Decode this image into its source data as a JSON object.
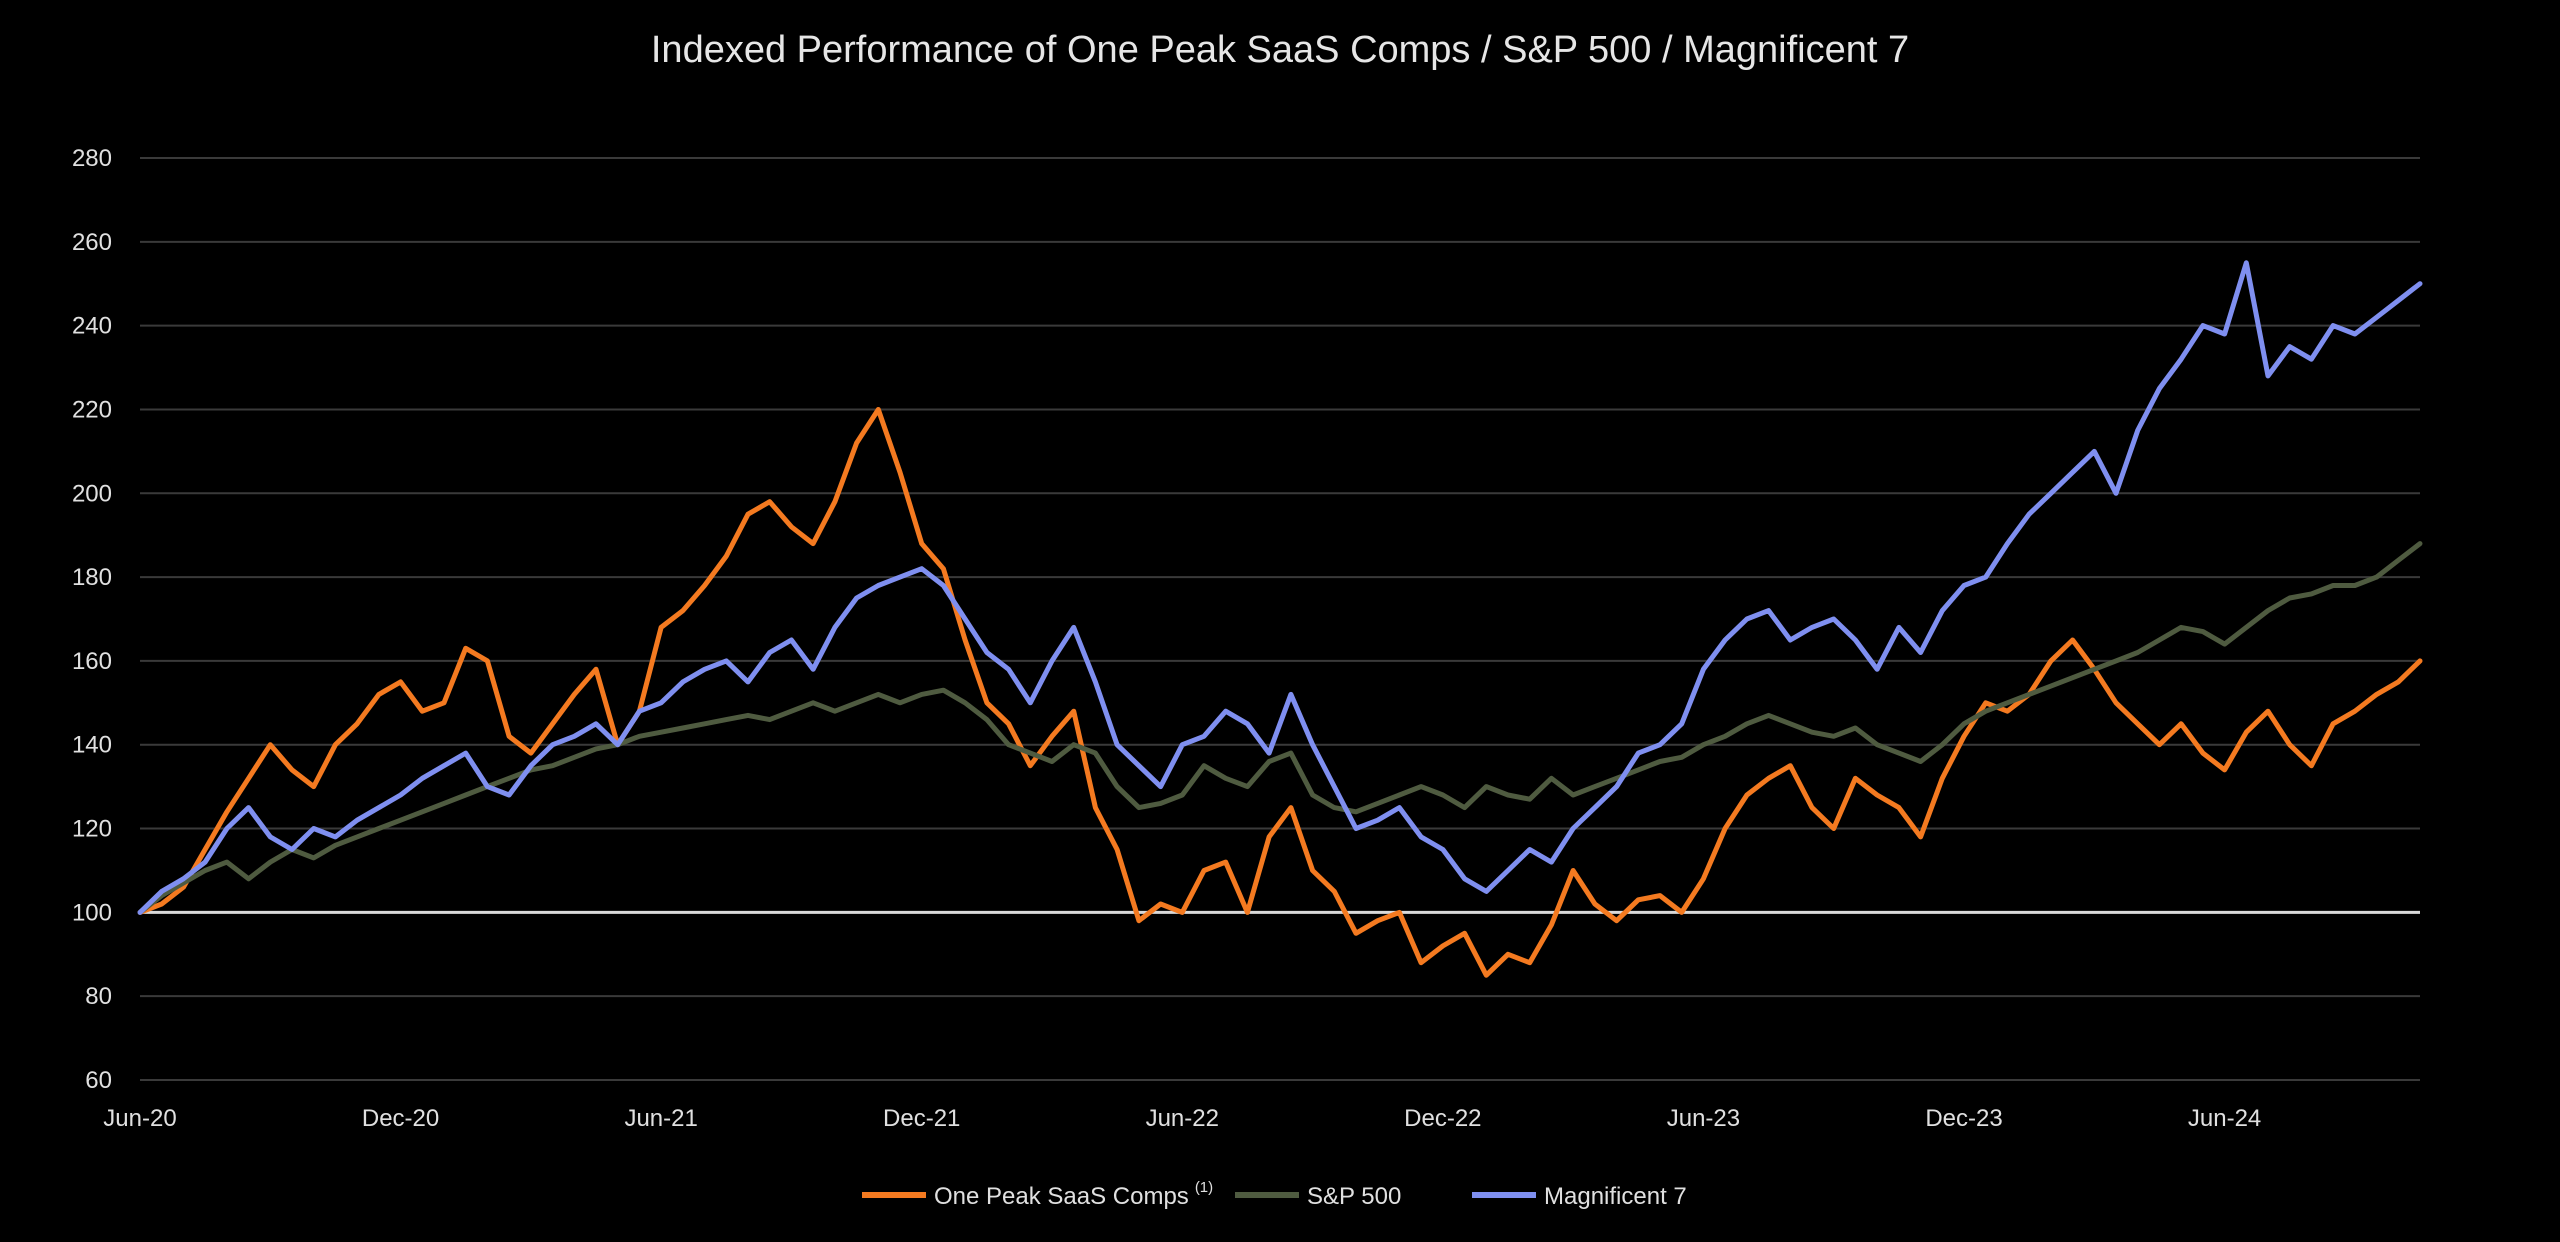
{
  "chart_data": {
    "type": "line",
    "title": "Indexed Performance of One Peak SaaS Comps / S&P 500 / Magnificent 7",
    "xlabel": "",
    "ylabel": "",
    "ylim": [
      60,
      280
    ],
    "yticks": [
      60,
      80,
      100,
      120,
      140,
      160,
      180,
      200,
      220,
      240,
      260,
      280
    ],
    "xlim": [
      0,
      52.5
    ],
    "xticks": [
      {
        "label": "Jun-20",
        "x": 0
      },
      {
        "label": "Dec-20",
        "x": 6
      },
      {
        "label": "Jun-21",
        "x": 12
      },
      {
        "label": "Dec-21",
        "x": 18
      },
      {
        "label": "Jun-22",
        "x": 24
      },
      {
        "label": "Dec-22",
        "x": 30
      },
      {
        "label": "Jun-23",
        "x": 36
      },
      {
        "label": "Dec-23",
        "x": 42
      },
      {
        "label": "Jun-24",
        "x": 48
      }
    ],
    "baseline": 100,
    "grid": true,
    "legend_position": "bottom-center",
    "x_unit": "months since Jun-20",
    "series": [
      {
        "name": "One Peak SaaS Comps",
        "superscript": "(1)",
        "color": "#f47a20",
        "x": [
          0,
          0.5,
          1,
          1.5,
          2,
          2.5,
          3,
          3.5,
          4,
          4.5,
          5,
          5.5,
          6,
          6.5,
          7,
          7.5,
          8,
          8.5,
          9,
          9.5,
          10,
          10.5,
          11,
          11.5,
          12,
          12.5,
          13,
          13.5,
          14,
          14.5,
          15,
          15.5,
          16,
          16.5,
          17,
          17.5,
          18,
          18.5,
          19,
          19.5,
          20,
          20.5,
          21,
          21.5,
          22,
          22.5,
          23,
          23.5,
          24,
          24.5,
          25,
          25.5,
          26,
          26.5,
          27,
          27.5,
          28,
          28.5,
          29,
          29.5,
          30,
          30.5,
          31,
          31.5,
          32,
          32.5,
          33,
          33.5,
          34,
          34.5,
          35,
          35.5,
          36,
          36.5,
          37,
          37.5,
          38,
          38.5,
          39,
          39.5,
          40,
          40.5,
          41,
          41.5,
          42,
          42.5,
          43,
          43.5,
          44,
          44.5,
          45,
          45.5,
          46,
          46.5,
          47,
          47.5,
          48,
          48.5,
          49,
          49.5,
          50,
          50.5,
          51,
          51.5,
          52,
          52.5
        ],
        "values": [
          100,
          102,
          106,
          115,
          124,
          132,
          140,
          134,
          130,
          140,
          145,
          152,
          155,
          148,
          150,
          163,
          160,
          142,
          138,
          145,
          152,
          158,
          140,
          148,
          168,
          172,
          178,
          185,
          195,
          198,
          192,
          188,
          198,
          212,
          220,
          205,
          188,
          182,
          165,
          150,
          145,
          135,
          142,
          148,
          125,
          115,
          98,
          102,
          100,
          110,
          112,
          100,
          118,
          125,
          110,
          105,
          95,
          98,
          100,
          88,
          92,
          95,
          85,
          90,
          88,
          97,
          110,
          102,
          98,
          103,
          104,
          100,
          108,
          120,
          128,
          132,
          135,
          125,
          120,
          132,
          128,
          125,
          118,
          132,
          142,
          150,
          148,
          152,
          160,
          165,
          158,
          150,
          145,
          140,
          145,
          138,
          134,
          143,
          148,
          140,
          135,
          145,
          148,
          152,
          155,
          160
        ]
      },
      {
        "name": "S&P 500",
        "superscript": "",
        "color": "#4f5b40",
        "x": [
          0,
          0.5,
          1,
          1.5,
          2,
          2.5,
          3,
          3.5,
          4,
          4.5,
          5,
          5.5,
          6,
          6.5,
          7,
          7.5,
          8,
          8.5,
          9,
          9.5,
          10,
          10.5,
          11,
          11.5,
          12,
          12.5,
          13,
          13.5,
          14,
          14.5,
          15,
          15.5,
          16,
          16.5,
          17,
          17.5,
          18,
          18.5,
          19,
          19.5,
          20,
          20.5,
          21,
          21.5,
          22,
          22.5,
          23,
          23.5,
          24,
          24.5,
          25,
          25.5,
          26,
          26.5,
          27,
          27.5,
          28,
          28.5,
          29,
          29.5,
          30,
          30.5,
          31,
          31.5,
          32,
          32.5,
          33,
          33.5,
          34,
          34.5,
          35,
          35.5,
          36,
          36.5,
          37,
          37.5,
          38,
          38.5,
          39,
          39.5,
          40,
          40.5,
          41,
          41.5,
          42,
          42.5,
          43,
          43.5,
          44,
          44.5,
          45,
          45.5,
          46,
          46.5,
          47,
          47.5,
          48,
          48.5,
          49,
          49.5,
          50,
          50.5,
          51,
          51.5,
          52,
          52.5
        ],
        "values": [
          100,
          104,
          107,
          110,
          112,
          108,
          112,
          115,
          113,
          116,
          118,
          120,
          122,
          124,
          126,
          128,
          130,
          132,
          134,
          135,
          137,
          139,
          140,
          142,
          143,
          144,
          145,
          146,
          147,
          146,
          148,
          150,
          148,
          150,
          152,
          150,
          152,
          153,
          150,
          146,
          140,
          138,
          136,
          140,
          138,
          130,
          125,
          126,
          128,
          135,
          132,
          130,
          136,
          138,
          128,
          125,
          124,
          126,
          128,
          130,
          128,
          125,
          130,
          128,
          127,
          132,
          128,
          130,
          132,
          134,
          136,
          137,
          140,
          142,
          145,
          147,
          145,
          143,
          142,
          144,
          140,
          138,
          136,
          140,
          145,
          148,
          150,
          152,
          154,
          156,
          158,
          160,
          162,
          165,
          168,
          167,
          164,
          168,
          172,
          175,
          176,
          178,
          178,
          180,
          184,
          188
        ]
      },
      {
        "name": "Magnificent 7",
        "superscript": "",
        "color": "#7f8ff0",
        "x": [
          0,
          0.5,
          1,
          1.5,
          2,
          2.5,
          3,
          3.5,
          4,
          4.5,
          5,
          5.5,
          6,
          6.5,
          7,
          7.5,
          8,
          8.5,
          9,
          9.5,
          10,
          10.5,
          11,
          11.5,
          12,
          12.5,
          13,
          13.5,
          14,
          14.5,
          15,
          15.5,
          16,
          16.5,
          17,
          17.5,
          18,
          18.5,
          19,
          19.5,
          20,
          20.5,
          21,
          21.5,
          22,
          22.5,
          23,
          23.5,
          24,
          24.5,
          25,
          25.5,
          26,
          26.5,
          27,
          27.5,
          28,
          28.5,
          29,
          29.5,
          30,
          30.5,
          31,
          31.5,
          32,
          32.5,
          33,
          33.5,
          34,
          34.5,
          35,
          35.5,
          36,
          36.5,
          37,
          37.5,
          38,
          38.5,
          39,
          39.5,
          40,
          40.5,
          41,
          41.5,
          42,
          42.5,
          43,
          43.5,
          44,
          44.5,
          45,
          45.5,
          46,
          46.5,
          47,
          47.5,
          48,
          48.5,
          49,
          49.5,
          50,
          50.5,
          51,
          51.5,
          52,
          52.5
        ],
        "values": [
          100,
          105,
          108,
          112,
          120,
          125,
          118,
          115,
          120,
          118,
          122,
          125,
          128,
          132,
          135,
          138,
          130,
          128,
          135,
          140,
          142,
          145,
          140,
          148,
          150,
          155,
          158,
          160,
          155,
          162,
          165,
          158,
          168,
          175,
          178,
          180,
          182,
          178,
          170,
          162,
          158,
          150,
          160,
          168,
          155,
          140,
          135,
          130,
          140,
          142,
          148,
          145,
          138,
          152,
          140,
          130,
          120,
          122,
          125,
          118,
          115,
          108,
          105,
          110,
          115,
          112,
          120,
          125,
          130,
          138,
          140,
          145,
          158,
          165,
          170,
          172,
          165,
          168,
          170,
          165,
          158,
          168,
          162,
          172,
          178,
          180,
          188,
          195,
          200,
          205,
          210,
          200,
          215,
          225,
          232,
          240,
          238,
          255,
          228,
          235,
          232,
          240,
          238,
          242,
          246,
          250
        ]
      }
    ]
  }
}
